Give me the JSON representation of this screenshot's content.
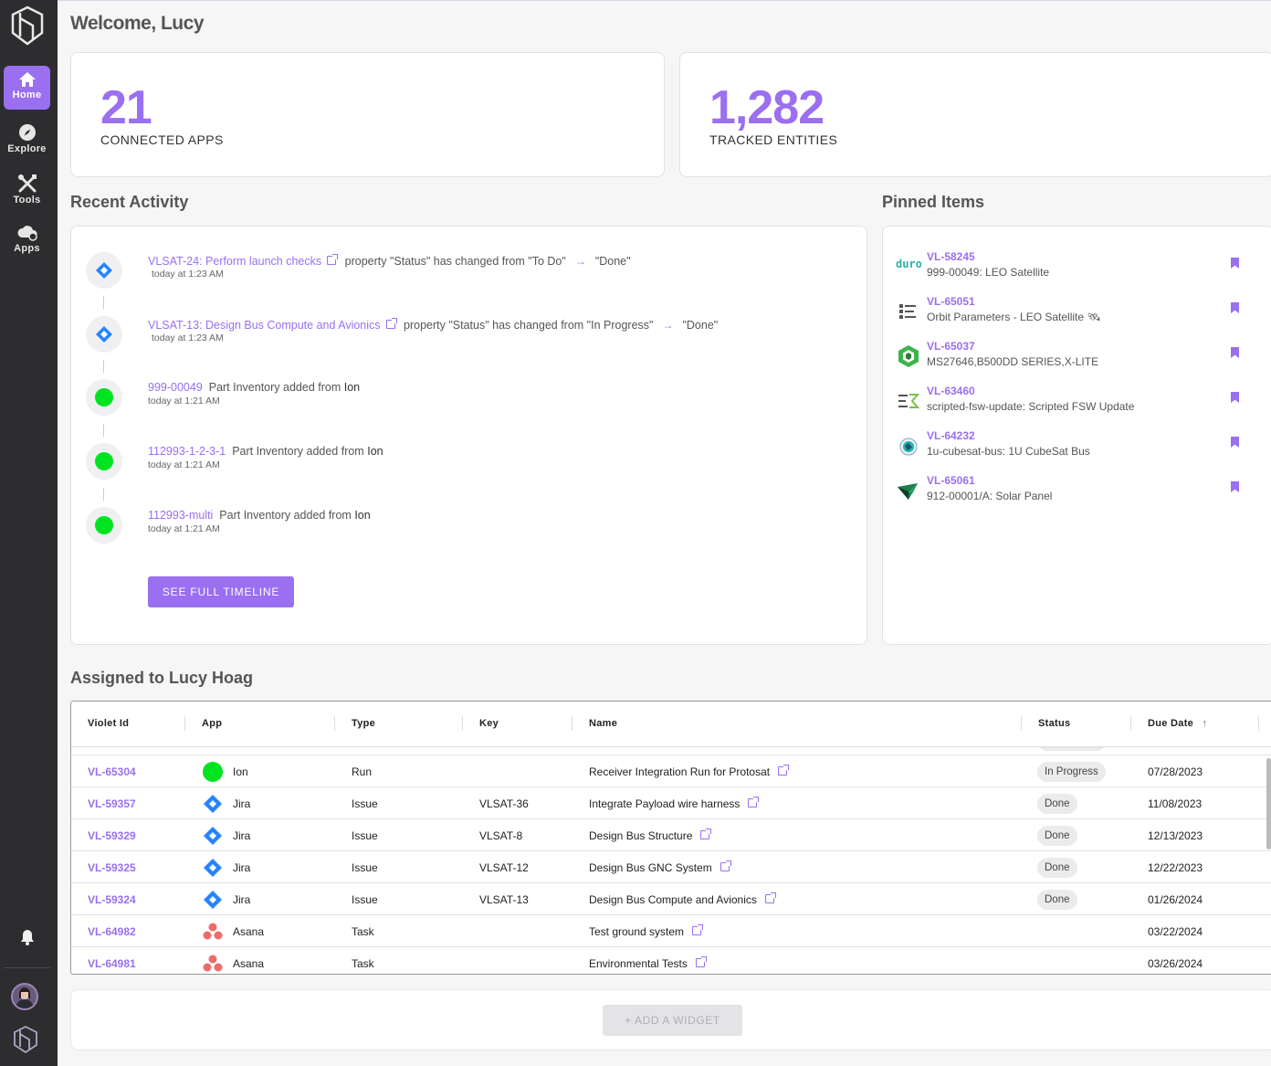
{
  "sidebar": {
    "nav": [
      {
        "label": "Home",
        "icon": "home-icon",
        "active": true
      },
      {
        "label": "Explore",
        "icon": "compass-icon"
      },
      {
        "label": "Tools",
        "icon": "tools-icon"
      },
      {
        "label": "Apps",
        "icon": "apps-icon"
      }
    ]
  },
  "header": {
    "welcome": "Welcome, Lucy"
  },
  "stats": [
    {
      "value": "21",
      "label": "CONNECTED APPS"
    },
    {
      "value": "1,282",
      "label": "TRACKED ENTITIES"
    }
  ],
  "recent_activity": {
    "title": "Recent Activity",
    "items": [
      {
        "icon": "jira-icon",
        "link": "VLSAT-24: Perform launch checks",
        "text": "property \"Status\" has changed from \"To Do\"",
        "to": "\"Done\"",
        "time": "today at 1:23 AM"
      },
      {
        "icon": "jira-icon",
        "link": "VLSAT-13: Design Bus Compute and Avionics",
        "text": "property \"Status\" has changed from \"In Progress\"",
        "to": "\"Done\"",
        "time": "today at 1:23 AM"
      },
      {
        "icon": "ion-icon",
        "link": "999-00049",
        "text": "Part Inventory added from",
        "source": "Ion",
        "time": "today at 1:21 AM"
      },
      {
        "icon": "ion-icon",
        "link": "112993-1-2-3-1",
        "text": "Part Inventory added from",
        "source": "Ion",
        "time": "today at 1:21 AM"
      },
      {
        "icon": "ion-icon",
        "link": "112993-multi",
        "text": "Part Inventory added from",
        "source": "Ion",
        "time": "today at 1:21 AM"
      }
    ],
    "button": "SEE FULL TIMELINE"
  },
  "pinned": {
    "title": "Pinned Items",
    "items": [
      {
        "id": "VL-58245",
        "name": "999-00049: LEO Satellite",
        "icon": "duro-icon",
        "icon_text": "duro"
      },
      {
        "id": "VL-65051",
        "name": "Orbit Parameters - LEO Satellite 🛰",
        "icon": "list-icon"
      },
      {
        "id": "VL-65037",
        "name": "MS27646,B500DD SERIES,X-LITE",
        "icon": "cube-icon"
      },
      {
        "id": "VL-63460",
        "name": "scripted-fsw-update: Scripted FSW Update",
        "icon": "script-icon"
      },
      {
        "id": "VL-64232",
        "name": "1u-cubesat-bus: 1U CubeSat Bus",
        "icon": "globe-icon"
      },
      {
        "id": "VL-65061",
        "name": "912-00001/A: Solar Panel",
        "icon": "arrow-logo-icon"
      }
    ]
  },
  "assigned": {
    "title": "Assigned to Lucy Hoag",
    "columns": [
      "Violet Id",
      "App",
      "Type",
      "Key",
      "Name",
      "Status",
      "Due Date"
    ],
    "sort_indicator": "↑",
    "rows": [
      {
        "id": "VL-65304",
        "app": "Ion",
        "app_icon": "ion-icon",
        "type": "Run",
        "key": "",
        "name": "Receiver Integration Run for Protosat",
        "status": "In Progress",
        "due": "07/28/2023"
      },
      {
        "id": "VL-59357",
        "app": "Jira",
        "app_icon": "jira-icon",
        "type": "Issue",
        "key": "VLSAT-36",
        "name": "Integrate Payload wire harness",
        "status": "Done",
        "due": "11/08/2023"
      },
      {
        "id": "VL-59329",
        "app": "Jira",
        "app_icon": "jira-icon",
        "type": "Issue",
        "key": "VLSAT-8",
        "name": "Design Bus Structure",
        "status": "Done",
        "due": "12/13/2023"
      },
      {
        "id": "VL-59325",
        "app": "Jira",
        "app_icon": "jira-icon",
        "type": "Issue",
        "key": "VLSAT-12",
        "name": "Design Bus GNC System",
        "status": "Done",
        "due": "12/22/2023"
      },
      {
        "id": "VL-59324",
        "app": "Jira",
        "app_icon": "jira-icon",
        "type": "Issue",
        "key": "VLSAT-13",
        "name": "Design Bus Compute and Avionics",
        "status": "Done",
        "due": "01/26/2024"
      },
      {
        "id": "VL-64982",
        "app": "Asana",
        "app_icon": "asana-icon",
        "type": "Task",
        "key": "",
        "name": "Test ground system",
        "status": "",
        "due": "03/22/2024"
      },
      {
        "id": "VL-64981",
        "app": "Asana",
        "app_icon": "asana-icon",
        "type": "Task",
        "key": "",
        "name": "Environmental Tests",
        "status": "",
        "due": "03/26/2024"
      }
    ]
  },
  "widget": {
    "button": "+ ADD A WIDGET"
  },
  "colors": {
    "accent": "#9a6ff0",
    "sidebar": "#2d2d2f",
    "ion": "#00e31f",
    "jira": "#2684ff",
    "asana": "#f06a6a"
  }
}
